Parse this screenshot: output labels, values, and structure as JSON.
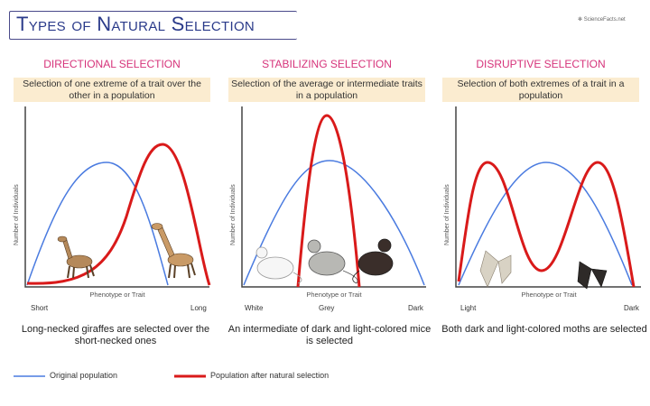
{
  "header": {
    "title": "Types of Natural Selection",
    "logo": "ScienceFacts.net"
  },
  "panels": [
    {
      "title": "DIRECTIONAL SELECTION",
      "description": "Selection of one extreme of a trait over the other in a population",
      "y_label": "Number of Individuals",
      "x_label": "Phenotype or Trait",
      "ticks": [
        "Short",
        "Long"
      ],
      "caption": "Long-necked giraffes are selected over the short-necked ones",
      "animal": "giraffe"
    },
    {
      "title": "STABILIZING SELECTION",
      "description": "Selection of the average or intermediate traits in a population",
      "y_label": "Number of Individuals",
      "x_label": "Phenotype or Trait",
      "ticks": [
        "White",
        "Grey",
        "Dark"
      ],
      "caption": "An intermediate of dark and light-colored mice is selected",
      "animal": "mouse"
    },
    {
      "title": "DISRUPTIVE SELECTION",
      "description": "Selection of both extremes of a trait in a population",
      "y_label": "Number of Individuals",
      "x_label": "Phenotype or Trait",
      "ticks": [
        "Light",
        "Dark"
      ],
      "caption": "Both dark and light-colored moths are selected",
      "animal": "moth"
    }
  ],
  "legend": [
    {
      "label": "Original population",
      "color": "#4a7be0"
    },
    {
      "label": "Population after natural selection",
      "color": "#d91a1a"
    }
  ]
}
